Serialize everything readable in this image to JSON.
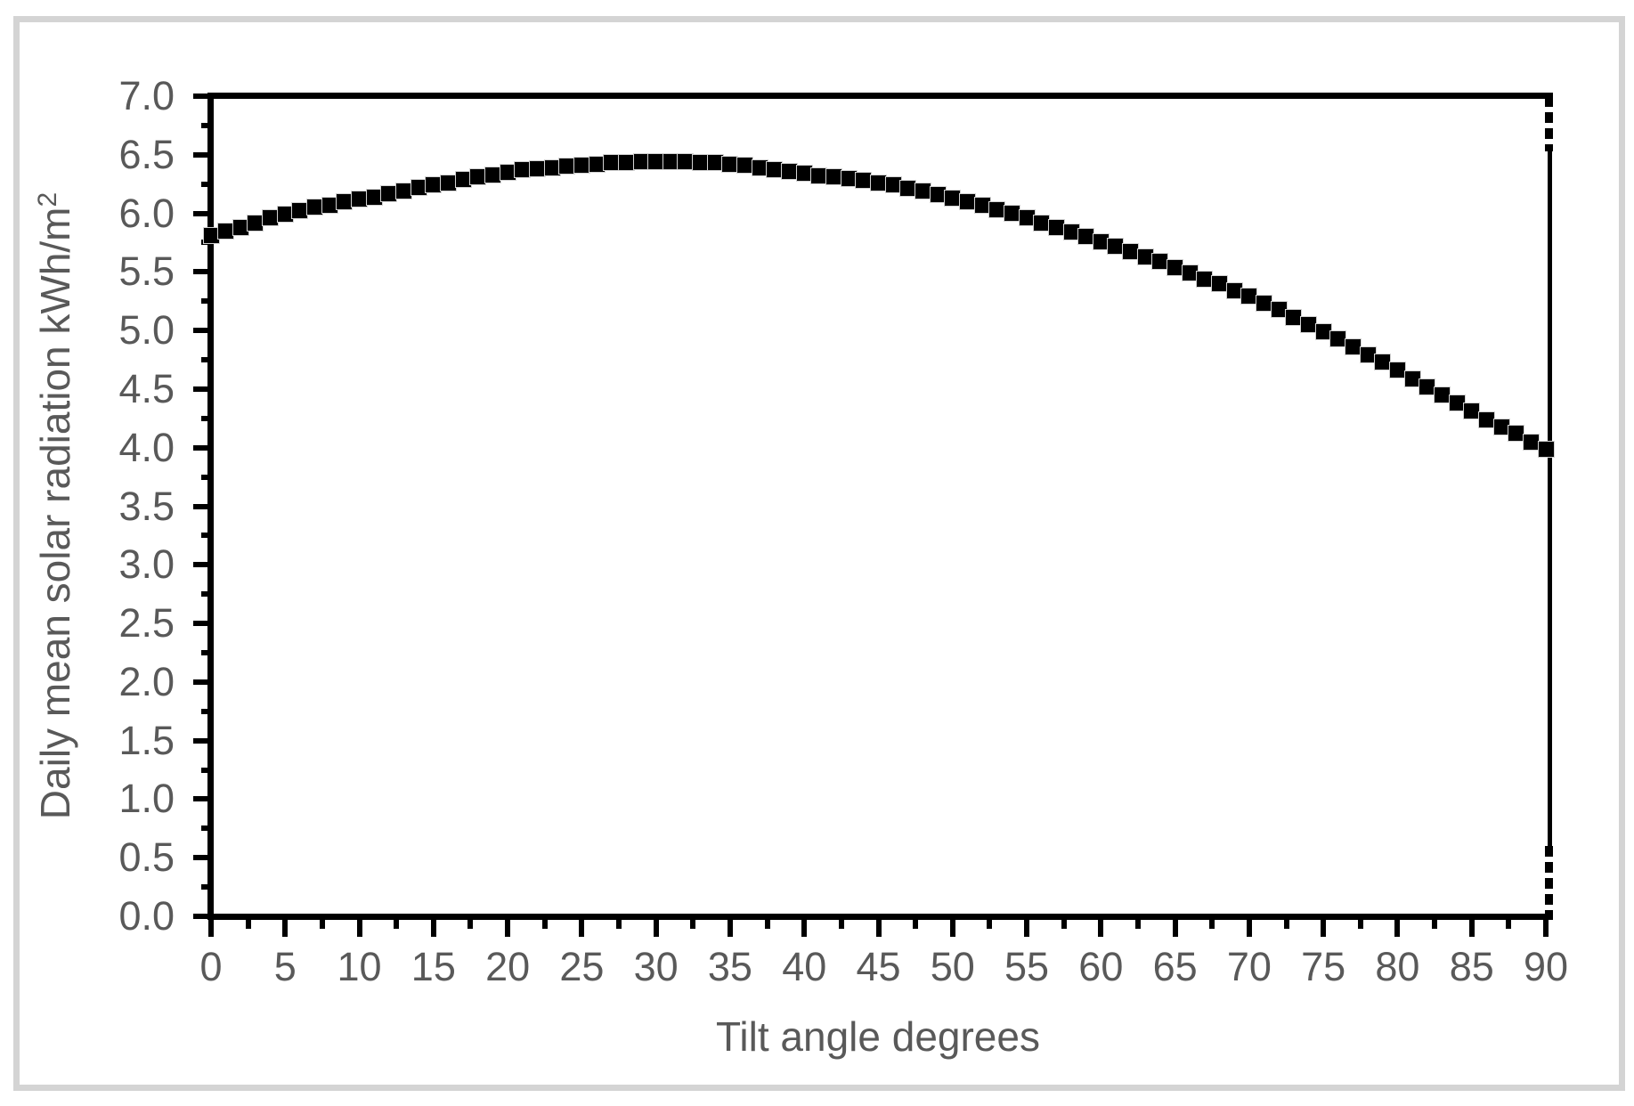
{
  "colors": {
    "tick_label": "#595959",
    "axis_title": "#595959",
    "axis_line": "#000000",
    "marker": "#000000",
    "chart_border": "#d4d4d4",
    "background": "#ffffff"
  },
  "chart_data": {
    "type": "scatter",
    "title": "",
    "xlabel": "Tilt angle degrees",
    "ylabel": "Daily mean solar radiation kWh/m²",
    "ylabel_main": "Daily mean solar radiation kWh/m",
    "ylabel_sup": "2",
    "xlim": [
      0,
      90
    ],
    "ylim": [
      0.0,
      7.0
    ],
    "x_major_step": 5,
    "x_minor_step": 2.5,
    "y_major_step": 0.5,
    "y_minor_step": 0.25,
    "grid": false,
    "legend": "none",
    "marker_style": "filled-square",
    "x_tick_labels": [
      "0",
      "5",
      "10",
      "15",
      "20",
      "25",
      "30",
      "35",
      "40",
      "45",
      "50",
      "55",
      "60",
      "65",
      "70",
      "75",
      "80",
      "85",
      "90"
    ],
    "y_tick_labels": [
      "0.0",
      "0.5",
      "1.0",
      "1.5",
      "2.0",
      "2.5",
      "3.0",
      "3.5",
      "4.0",
      "4.5",
      "5.0",
      "5.5",
      "6.0",
      "6.5",
      "7.0"
    ],
    "series": [
      {
        "name": "Daily mean solar radiation",
        "color": "#000000",
        "x": [
          0,
          1,
          2,
          3,
          4,
          5,
          6,
          7,
          8,
          9,
          10,
          11,
          12,
          13,
          14,
          15,
          16,
          17,
          18,
          19,
          20,
          21,
          22,
          23,
          24,
          25,
          26,
          27,
          28,
          29,
          30,
          31,
          32,
          33,
          34,
          35,
          36,
          37,
          38,
          39,
          40,
          41,
          42,
          43,
          44,
          45,
          46,
          47,
          48,
          49,
          50,
          51,
          52,
          53,
          54,
          55,
          56,
          57,
          58,
          59,
          60,
          61,
          62,
          63,
          64,
          65,
          66,
          67,
          68,
          69,
          70,
          71,
          72,
          73,
          74,
          75,
          76,
          77,
          78,
          79,
          80,
          81,
          82,
          83,
          84,
          85,
          86,
          87,
          88,
          89,
          90
        ],
        "y": [
          5.81,
          5.85,
          5.88,
          5.92,
          5.96,
          5.99,
          6.02,
          6.05,
          6.07,
          6.1,
          6.12,
          6.14,
          6.17,
          6.19,
          6.22,
          6.24,
          6.26,
          6.29,
          6.31,
          6.33,
          6.35,
          6.37,
          6.38,
          6.39,
          6.4,
          6.41,
          6.42,
          6.43,
          6.43,
          6.44,
          6.44,
          6.44,
          6.44,
          6.43,
          6.43,
          6.42,
          6.41,
          6.39,
          6.37,
          6.36,
          6.34,
          6.32,
          6.31,
          6.3,
          6.28,
          6.26,
          6.24,
          6.21,
          6.19,
          6.16,
          6.13,
          6.1,
          6.07,
          6.03,
          6.0,
          5.96,
          5.92,
          5.88,
          5.84,
          5.8,
          5.76,
          5.72,
          5.67,
          5.63,
          5.59,
          5.54,
          5.49,
          5.44,
          5.4,
          5.34,
          5.29,
          5.23,
          5.18,
          5.11,
          5.05,
          4.99,
          4.93,
          4.86,
          4.79,
          4.73,
          4.66,
          4.59,
          4.52,
          4.45,
          4.38,
          4.31,
          4.24,
          4.18,
          4.12,
          4.05,
          3.99
        ]
      }
    ]
  }
}
